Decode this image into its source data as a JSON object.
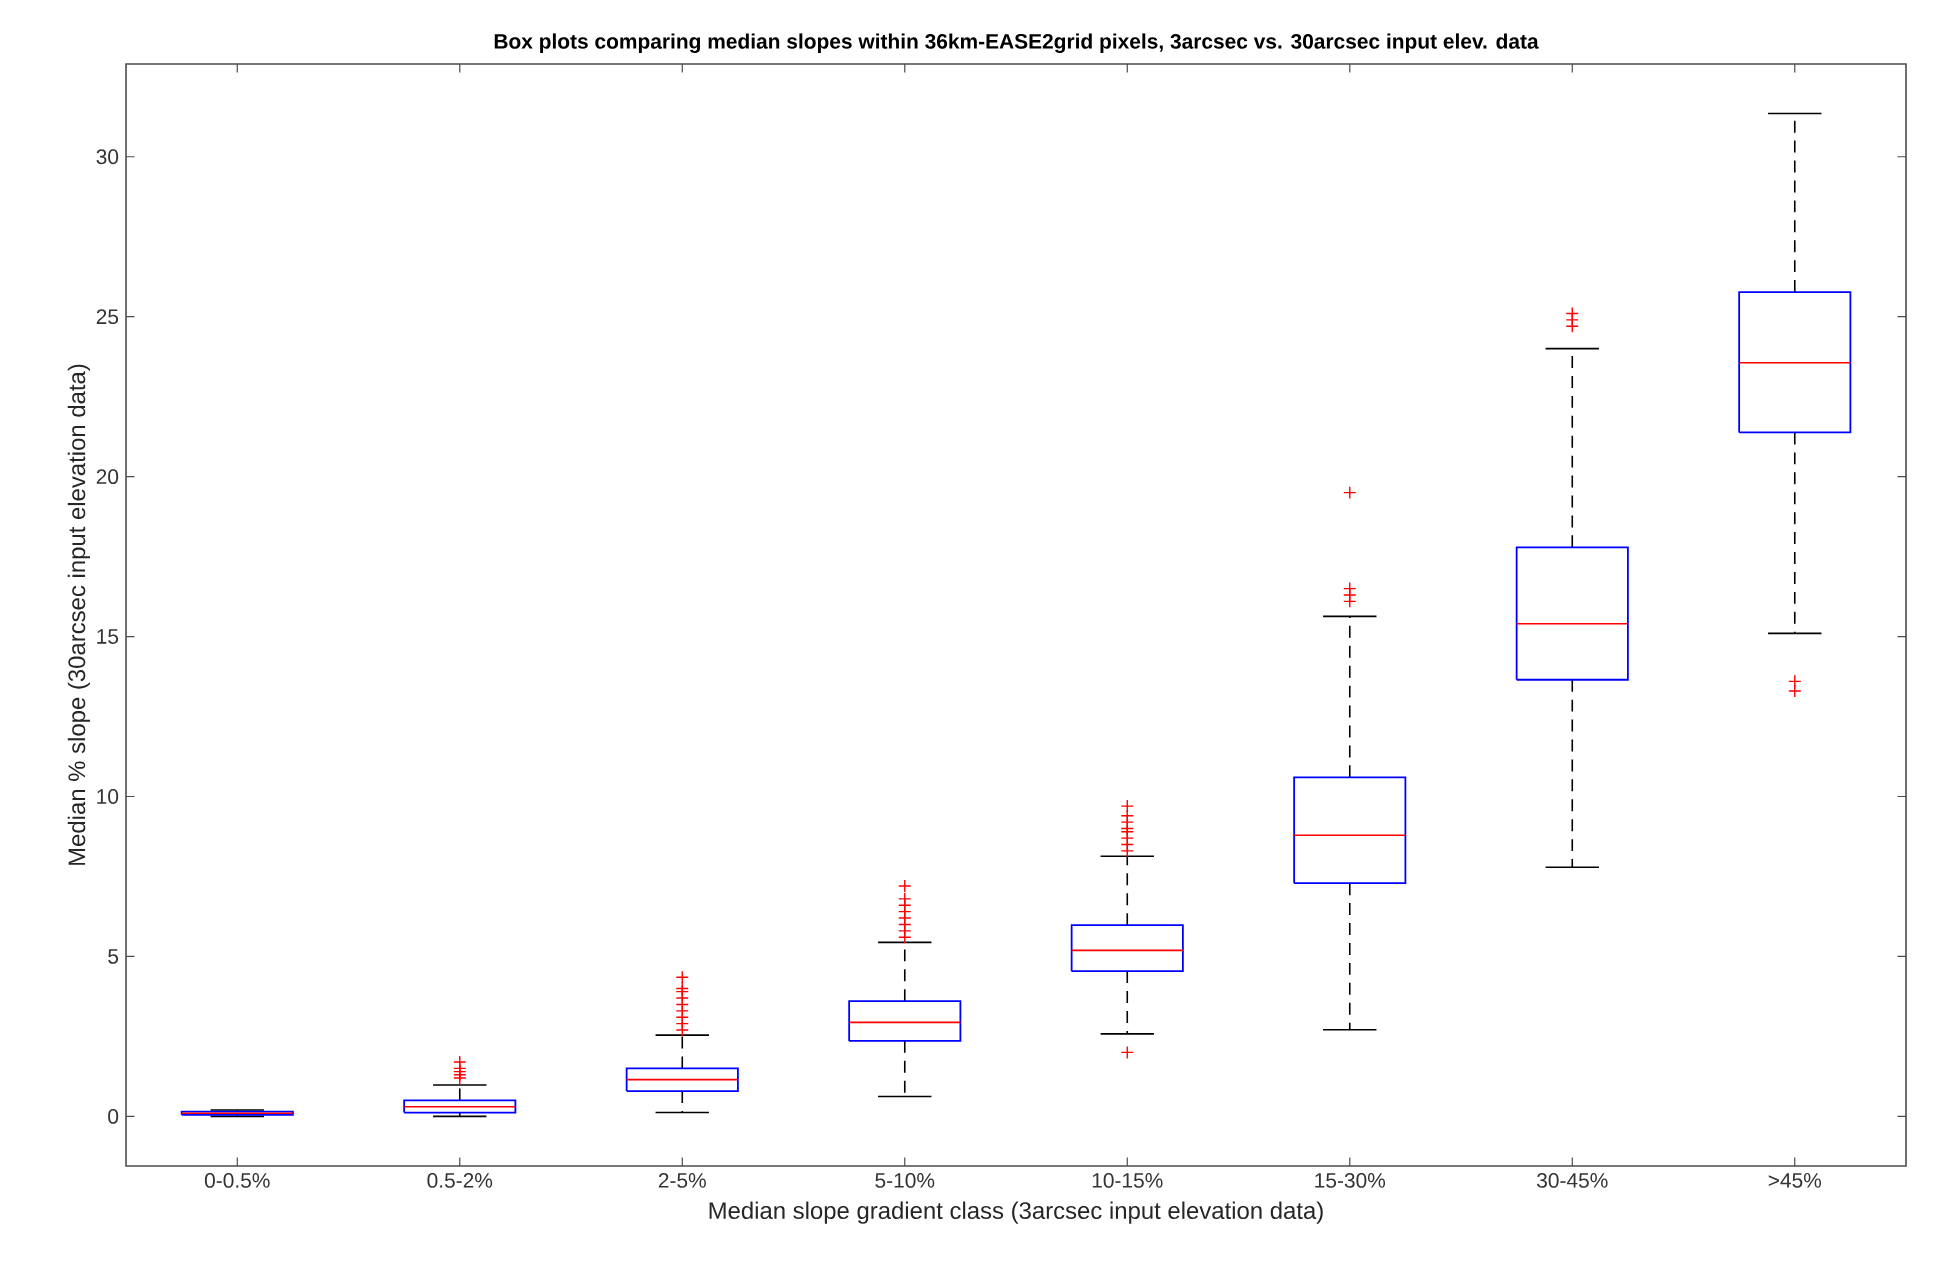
{
  "chart_data": {
    "type": "box",
    "title": "Box plots comparing median slopes within 36km-EASE2grid pixels, 3arcsec vs. 30arcsec input elev. data",
    "xlabel": "Median slope gradient class (3arcsec input elevation data)",
    "ylabel": "Median % slope (30arcsec input elevation data)",
    "categories": [
      "0-0.5%",
      "0.5-2%",
      "2-5%",
      "5-10%",
      "10-15%",
      "15-30%",
      "30-45%",
      ">45%"
    ],
    "color": "#0000ff",
    "boxes": [
      {
        "low": 0,
        "q1": 0.05,
        "median": 0.1,
        "q3": 0.15,
        "high": 0.2
      },
      {
        "low": 0,
        "q1": 0.12,
        "median": 0.3,
        "q3": 0.5,
        "high": 0.98,
        "outliers": [
          1.2,
          1.3,
          1.4,
          1.5,
          1.7
        ]
      },
      {
        "low": 0.12,
        "q1": 0.79,
        "median": 1.15,
        "q3": 1.5,
        "high": 2.54,
        "outliers": [
          2.7,
          2.9,
          3.1,
          3.3,
          3.5,
          3.7,
          3.9,
          4.0,
          4.35
        ]
      },
      {
        "low": 0.62,
        "q1": 2.36,
        "median": 2.94,
        "q3": 3.6,
        "high": 5.44,
        "outliers": [
          5.6,
          5.8,
          6.0,
          6.2,
          6.4,
          6.6,
          6.8,
          7.2
        ]
      },
      {
        "low": 2.58,
        "q1": 4.54,
        "median": 5.19,
        "q3": 5.98,
        "high": 8.13,
        "outliers": [
          2.0,
          8.3,
          8.5,
          8.7,
          8.9,
          9.0,
          9.2,
          9.4,
          9.7
        ]
      },
      {
        "low": 2.71,
        "q1": 7.29,
        "median": 8.79,
        "q3": 10.6,
        "high": 15.63,
        "outliers": [
          16.1,
          16.3,
          16.5,
          19.5
        ]
      },
      {
        "low": 7.79,
        "q1": 13.65,
        "median": 15.4,
        "q3": 17.79,
        "high": 24.0,
        "outliers": [
          24.7,
          24.9,
          25.1
        ]
      },
      {
        "low": 15.1,
        "q1": 21.38,
        "median": 23.56,
        "q3": 25.77,
        "high": 31.35,
        "outliers": [
          13.3,
          13.6
        ]
      }
    ],
    "ylim": [
      -1.55,
      32.9
    ],
    "yticks": [
      0,
      5,
      10,
      15,
      20,
      25,
      30
    ]
  }
}
